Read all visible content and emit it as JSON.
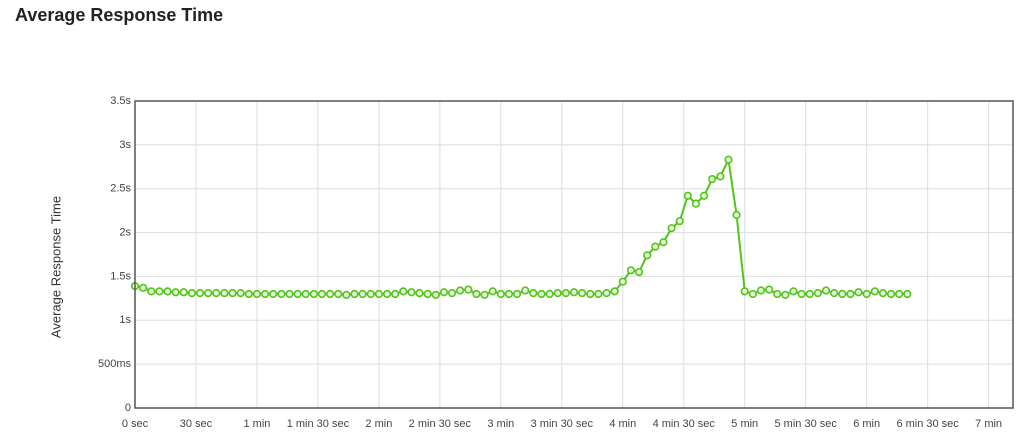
{
  "chart_data": {
    "type": "line",
    "title": "Average Response Time",
    "y_label": "Average Response Time",
    "x": [
      0,
      4,
      8,
      12,
      16,
      20,
      24,
      28,
      32,
      36,
      40,
      44,
      48,
      52,
      56,
      60,
      64,
      68,
      72,
      76,
      80,
      84,
      88,
      92,
      96,
      100,
      104,
      108,
      112,
      116,
      120,
      124,
      128,
      132,
      136,
      140,
      144,
      148,
      152,
      156,
      160,
      164,
      168,
      172,
      176,
      180,
      184,
      188,
      192,
      196,
      200,
      204,
      208,
      212,
      216,
      220,
      224,
      228,
      232,
      236,
      240,
      244,
      248,
      252,
      256,
      260,
      264,
      268,
      272,
      276,
      280,
      284,
      288,
      292,
      296,
      300,
      304,
      308,
      312,
      316,
      320,
      324,
      328,
      332,
      336,
      340,
      344,
      348,
      352,
      356,
      360,
      364,
      368,
      372,
      376,
      380
    ],
    "series": [
      {
        "name": "Average Response Time",
        "color": "#52c41a",
        "values": [
          1.39,
          1.37,
          1.33,
          1.33,
          1.33,
          1.32,
          1.32,
          1.31,
          1.31,
          1.31,
          1.31,
          1.31,
          1.31,
          1.31,
          1.3,
          1.3,
          1.3,
          1.3,
          1.3,
          1.3,
          1.3,
          1.3,
          1.3,
          1.3,
          1.3,
          1.3,
          1.29,
          1.3,
          1.3,
          1.3,
          1.3,
          1.3,
          1.3,
          1.33,
          1.32,
          1.31,
          1.3,
          1.29,
          1.32,
          1.31,
          1.34,
          1.35,
          1.3,
          1.29,
          1.33,
          1.3,
          1.3,
          1.3,
          1.34,
          1.31,
          1.3,
          1.3,
          1.31,
          1.31,
          1.32,
          1.31,
          1.3,
          1.3,
          1.31,
          1.33,
          1.44,
          1.57,
          1.55,
          1.74,
          1.84,
          1.89,
          2.05,
          2.13,
          2.42,
          2.33,
          2.42,
          2.61,
          2.64,
          2.83,
          2.2,
          1.33,
          1.3,
          1.34,
          1.35,
          1.3,
          1.29,
          1.33,
          1.3,
          1.3,
          1.31,
          1.34,
          1.31,
          1.3,
          1.3,
          1.32,
          1.3,
          1.33,
          1.31,
          1.3,
          1.3,
          1.3
        ]
      }
    ],
    "xlim": [
      0,
      432
    ],
    "xticks": [
      {
        "value": 0,
        "label": "0 sec"
      },
      {
        "value": 30,
        "label": "30 sec"
      },
      {
        "value": 60,
        "label": "1 min"
      },
      {
        "value": 90,
        "label": "1 min 30 sec"
      },
      {
        "value": 120,
        "label": "2 min"
      },
      {
        "value": 150,
        "label": "2 min 30 sec"
      },
      {
        "value": 180,
        "label": "3 min"
      },
      {
        "value": 210,
        "label": "3 min 30 sec"
      },
      {
        "value": 240,
        "label": "4 min"
      },
      {
        "value": 270,
        "label": "4 min 30 sec"
      },
      {
        "value": 300,
        "label": "5 min"
      },
      {
        "value": 330,
        "label": "5 min 30 sec"
      },
      {
        "value": 360,
        "label": "6 min"
      },
      {
        "value": 390,
        "label": "6 min 30 sec"
      },
      {
        "value": 420,
        "label": "7 min"
      }
    ],
    "ylim": [
      0,
      3.5
    ],
    "yticks": [
      0,
      {
        "value": 0.5,
        "label": "500ms"
      },
      {
        "value": 1,
        "label": "1s"
      },
      {
        "value": 1.5,
        "label": "1.5s"
      },
      {
        "value": 2,
        "label": "2s"
      },
      {
        "value": 2.5,
        "label": "2.5s"
      },
      {
        "value": 3,
        "label": "3s"
      },
      {
        "value": 3.5,
        "label": "3.5s"
      }
    ],
    "grid": true
  }
}
